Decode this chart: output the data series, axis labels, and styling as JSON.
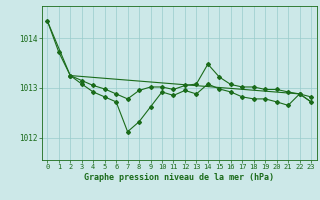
{
  "background_color": "#cce8e8",
  "grid_color": "#99cccc",
  "line_color": "#1a6b1a",
  "xlabel": "Graphe pression niveau de la mer (hPa)",
  "xlim": [
    -0.5,
    23.5
  ],
  "ylim": [
    1011.55,
    1014.65
  ],
  "yticks": [
    1012,
    1013,
    1014
  ],
  "xticks": [
    0,
    1,
    2,
    3,
    4,
    5,
    6,
    7,
    8,
    9,
    10,
    11,
    12,
    13,
    14,
    15,
    16,
    17,
    18,
    19,
    20,
    21,
    22,
    23
  ],
  "series1_x": [
    0,
    1,
    2,
    3,
    4,
    5,
    6,
    7,
    8,
    9,
    10,
    11,
    12,
    13,
    14,
    15,
    16,
    17,
    18,
    19,
    20,
    21,
    22,
    23
  ],
  "series1_y": [
    1014.35,
    1013.72,
    1013.25,
    1013.15,
    1013.05,
    1012.98,
    1012.88,
    1012.78,
    1012.95,
    1013.02,
    1013.02,
    1012.97,
    1013.05,
    1013.08,
    1013.48,
    1013.22,
    1013.07,
    1013.02,
    1013.02,
    1012.97,
    1012.97,
    1012.92,
    1012.88,
    1012.82
  ],
  "series2_x": [
    2,
    3,
    4,
    5,
    6,
    7,
    8,
    9,
    10,
    11,
    12,
    13,
    14,
    15,
    16,
    17,
    18,
    19,
    20,
    21,
    22,
    23
  ],
  "series2_y": [
    1013.25,
    1013.08,
    1012.92,
    1012.82,
    1012.72,
    1012.12,
    1012.32,
    1012.62,
    1012.92,
    1012.85,
    1012.95,
    1012.88,
    1013.08,
    1012.98,
    1012.92,
    1012.82,
    1012.78,
    1012.78,
    1012.72,
    1012.65,
    1012.88,
    1012.72
  ],
  "series3_x": [
    0,
    2,
    22,
    23
  ],
  "series3_y": [
    1014.35,
    1013.25,
    1012.88,
    1012.72
  ],
  "marker": "D",
  "marker_size": 2,
  "line_width": 0.8,
  "xlabel_fontsize": 6,
  "tick_fontsize": 5,
  "ytick_fontsize": 5.5
}
